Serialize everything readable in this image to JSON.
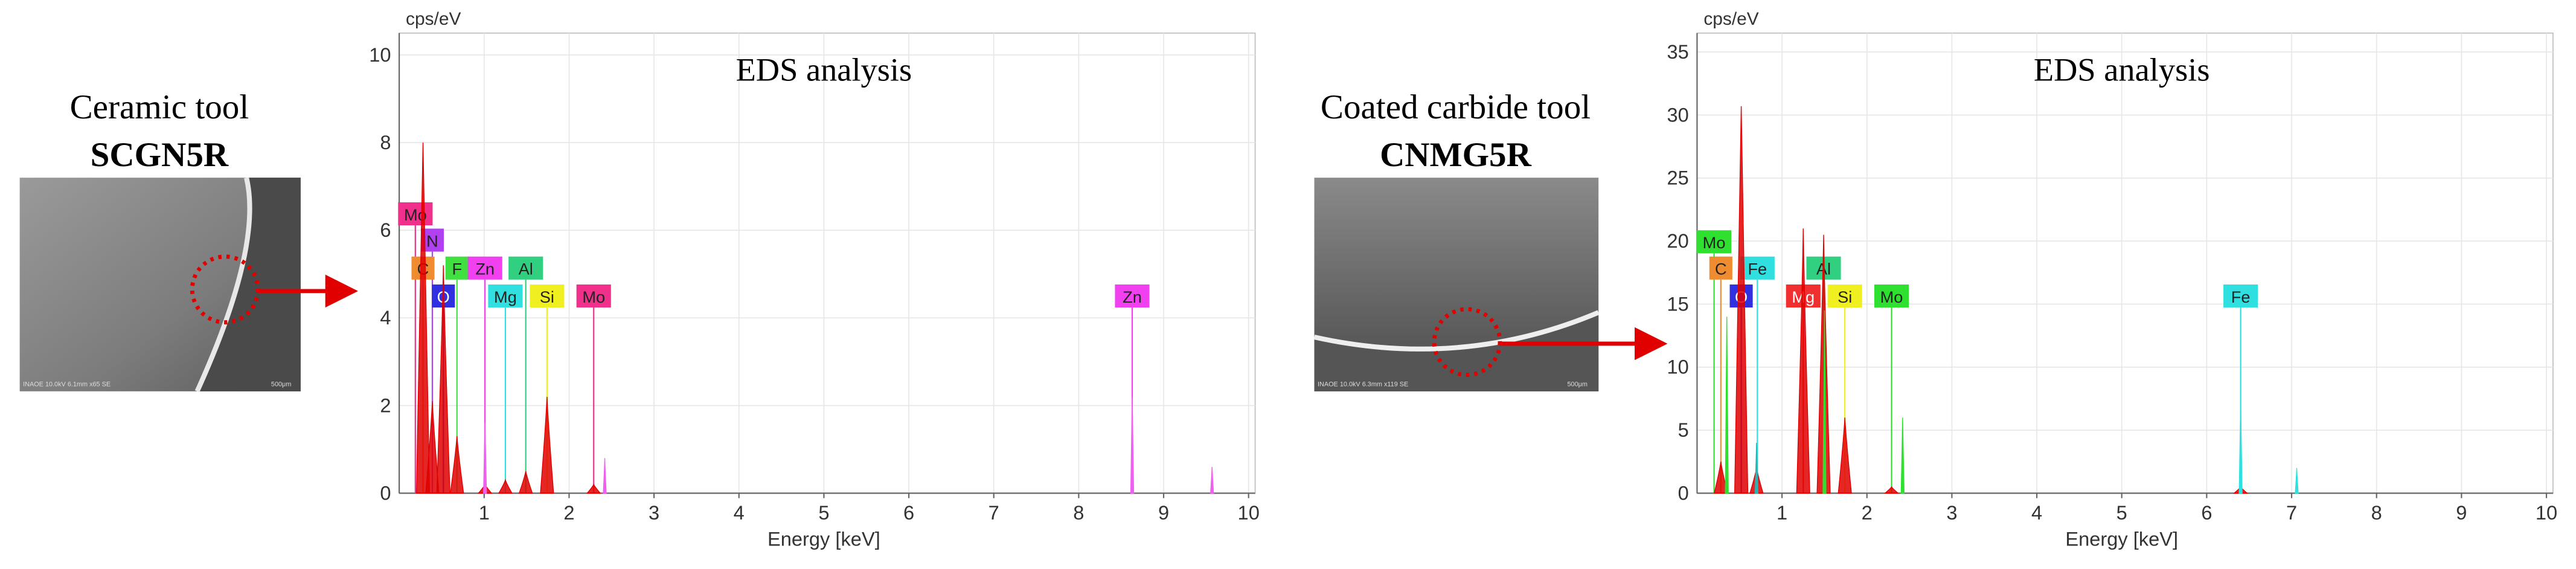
{
  "figure": {
    "panels": [
      {
        "caption": "Ceramic tool",
        "tool": "SCGN5R",
        "image_info": "INAOE 10.0kV 6.1mm x65 SE",
        "scale_bar": "500μm"
      },
      {
        "caption": "Coated carbide tool",
        "tool": "CNMG5R",
        "image_info": "INAOE 10.0kV 6.3mm x119 SE",
        "scale_bar": "500μm"
      }
    ]
  },
  "chart_data": [
    {
      "type": "spectrum",
      "title": "EDS analysis",
      "ylabel": "cps/eV",
      "xlabel": "Energy [keV]",
      "xlim": [
        0,
        10
      ],
      "xticks": [
        1,
        2,
        3,
        4,
        5,
        6,
        7,
        8,
        9,
        10
      ],
      "ylim": [
        0,
        10.5
      ],
      "yticks": [
        0,
        2,
        4,
        6,
        8,
        10
      ],
      "grid": true,
      "series": [
        {
          "color": "#e00000",
          "x": [
            0.28,
            0.39,
            0.52,
            0.68,
            1.01,
            1.25,
            1.49,
            1.74,
            2.29
          ],
          "values": [
            8.0,
            2.1,
            5.2,
            1.3,
            0.2,
            0.3,
            0.5,
            2.2,
            0.2
          ]
        },
        {
          "colors": [
            "#f060f0",
            "#f060f0",
            "#f060f0",
            "#f060f0"
          ],
          "x": [
            1.01,
            2.42,
            8.63,
            9.57
          ],
          "values": [
            1.6,
            0.8,
            2.2,
            0.6
          ]
        }
      ],
      "markers": [
        {
          "label": "Mo",
          "x": 0.19,
          "color": "#f0308a"
        },
        {
          "label": "N",
          "x": 0.39,
          "color": "#b040f0"
        },
        {
          "label": "C",
          "x": 0.28,
          "color": "#f08c30"
        },
        {
          "label": "F",
          "x": 0.68,
          "color": "#40e040"
        },
        {
          "label": "Zn",
          "x": 1.01,
          "color": "#f040f0"
        },
        {
          "label": "Al",
          "x": 1.49,
          "color": "#30d080"
        },
        {
          "label": "O",
          "x": 0.52,
          "color": "#3030e0"
        },
        {
          "label": "Mg",
          "x": 1.25,
          "color": "#30e0e0"
        },
        {
          "label": "Si",
          "x": 1.74,
          "color": "#f0f020"
        },
        {
          "label": "Mo",
          "x": 2.29,
          "color": "#f0308a"
        },
        {
          "label": "Zn",
          "x": 8.63,
          "color": "#f040f0"
        }
      ]
    },
    {
      "type": "spectrum",
      "title": "EDS analysis",
      "ylabel": "cps/eV",
      "xlabel": "Energy [keV]",
      "xlim": [
        0,
        10
      ],
      "xticks": [
        1,
        2,
        3,
        4,
        5,
        6,
        7,
        8,
        9,
        10
      ],
      "ylim": [
        0,
        36.5
      ],
      "yticks": [
        0,
        5,
        10,
        15,
        20,
        25,
        30,
        35
      ],
      "grid": true,
      "series": [
        {
          "color": "#e00000",
          "x": [
            0.28,
            0.52,
            0.7,
            1.25,
            1.49,
            1.74,
            2.29,
            6.4
          ],
          "values": [
            2.5,
            30.7,
            2.0,
            21.0,
            20.5,
            6.0,
            0.5,
            0.5
          ]
        },
        {
          "colors": [
            "#30e030",
            "#30b0b0",
            "#30e030",
            "#30e030",
            "#30e0e0",
            "#30e0e0"
          ],
          "x": [
            0.35,
            0.7,
            1.5,
            2.42,
            6.4,
            7.06
          ],
          "values": [
            14.0,
            4.0,
            14.5,
            6.0,
            7.3,
            2.0
          ]
        }
      ],
      "markers": [
        {
          "label": "Mo",
          "x": 0.2,
          "color": "#30e030"
        },
        {
          "label": "C",
          "x": 0.28,
          "color": "#f08c30"
        },
        {
          "label": "Fe",
          "x": 0.71,
          "color": "#30e0e0"
        },
        {
          "label": "Al",
          "x": 1.49,
          "color": "#30d080"
        },
        {
          "label": "O",
          "x": 0.52,
          "color": "#3030e0"
        },
        {
          "label": "Mg",
          "x": 1.25,
          "color": "#f03030"
        },
        {
          "label": "Si",
          "x": 1.74,
          "color": "#f0f020"
        },
        {
          "label": "Mo",
          "x": 2.29,
          "color": "#30e030"
        },
        {
          "label": "Fe",
          "x": 6.4,
          "color": "#30e0e0"
        }
      ]
    }
  ]
}
